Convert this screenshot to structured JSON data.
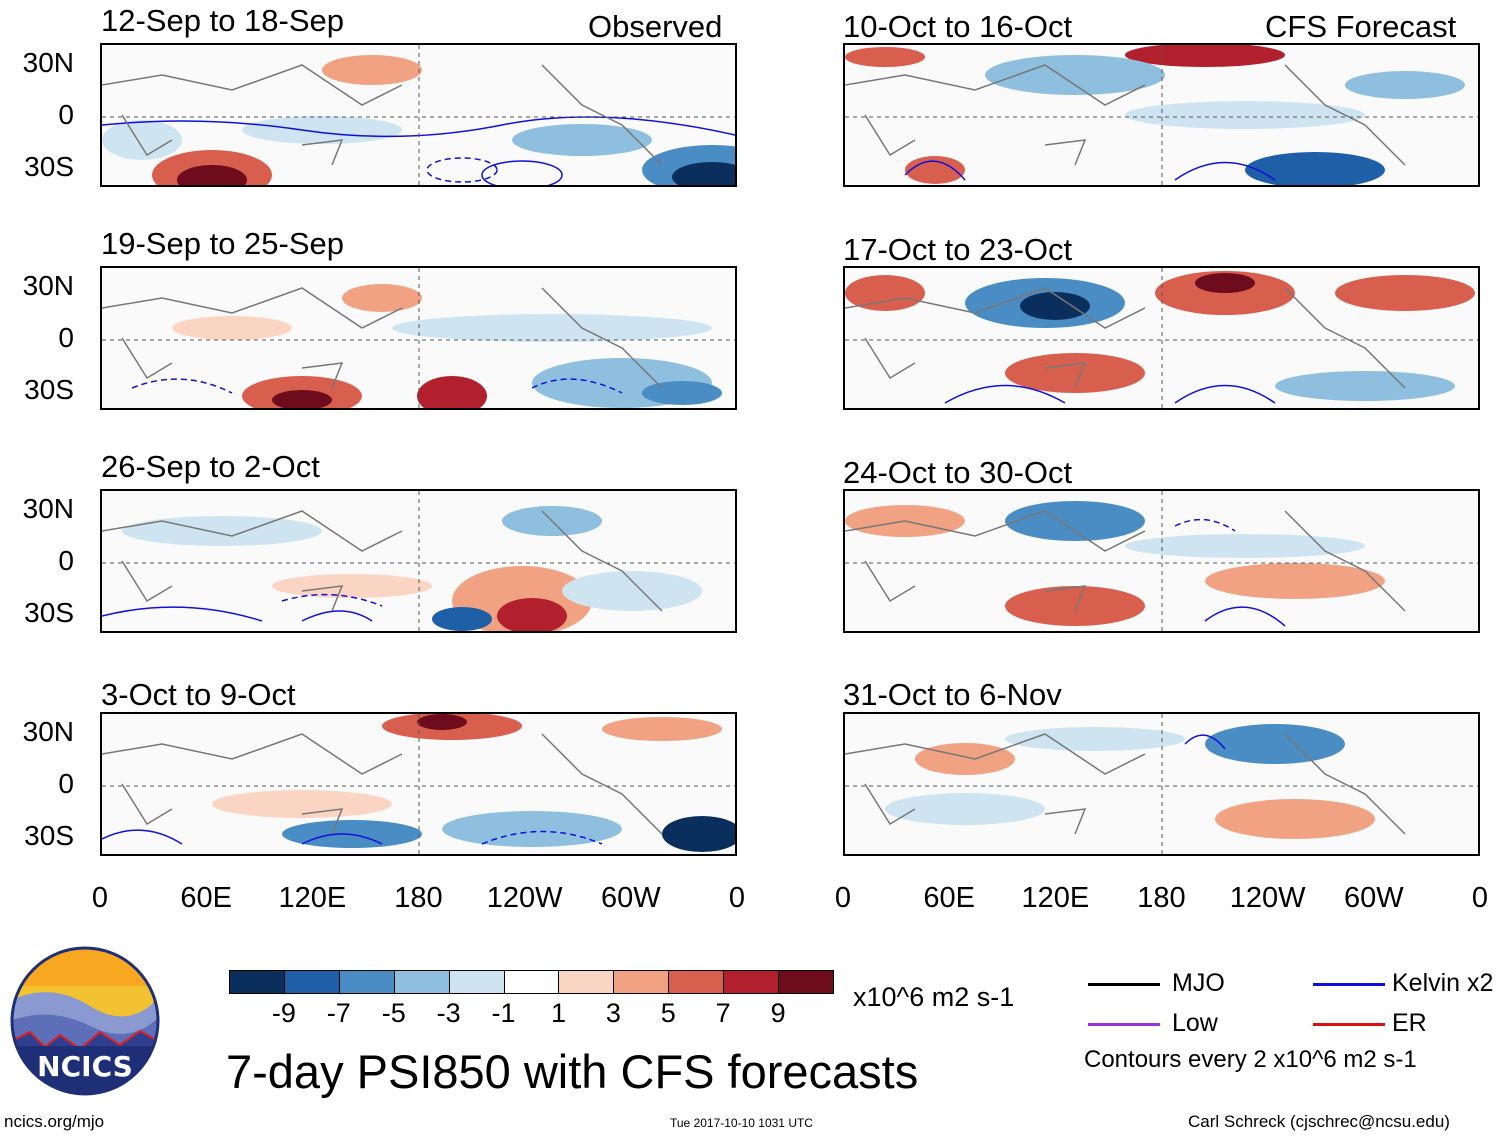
{
  "chart_data": {
    "type": "heatmap",
    "title": "7-day PSI850 with CFS forecasts",
    "columns": [
      "Observed",
      "CFS Forecast"
    ],
    "variable": "PSI850 anomaly",
    "units": "x10^6 m2 s-1",
    "lat_ticks": [
      "30N",
      "0",
      "30S"
    ],
    "lon_ticks": [
      "0",
      "60E",
      "120E",
      "180",
      "120W",
      "60W",
      "0"
    ],
    "ylim": [
      -40,
      40
    ],
    "xlim": [
      0,
      360
    ],
    "panels": [
      {
        "column": "Observed",
        "period": "12-Sep to 18-Sep"
      },
      {
        "column": "Observed",
        "period": "19-Sep to 25-Sep"
      },
      {
        "column": "Observed",
        "period": "26-Sep to 2-Oct"
      },
      {
        "column": "Observed",
        "period": "3-Oct to 9-Oct"
      },
      {
        "column": "CFS Forecast",
        "period": "10-Oct to 16-Oct"
      },
      {
        "column": "CFS Forecast",
        "period": "17-Oct to 23-Oct"
      },
      {
        "column": "CFS Forecast",
        "period": "24-Oct to 30-Oct"
      },
      {
        "column": "CFS Forecast",
        "period": "31-Oct to 6-Nov"
      }
    ],
    "colorbar": {
      "labels": [
        "-9",
        "-7",
        "-5",
        "-3",
        "-1",
        "1",
        "3",
        "5",
        "7",
        "9"
      ],
      "colors": [
        "#0a2f5c",
        "#1f5fa8",
        "#4a8cc4",
        "#8ebfde",
        "#cfe4f1",
        "#ffffff",
        "#fbd5c3",
        "#f0a283",
        "#d85f4e",
        "#b21f2d",
        "#6e0c1e"
      ]
    },
    "legend": {
      "entries": [
        {
          "label": "MJO",
          "color": "#000000"
        },
        {
          "label": "Low",
          "color": "#9b30d9"
        },
        {
          "label": "Kelvin x2",
          "color": "#1010dd"
        },
        {
          "label": "ER",
          "color": "#dd1111"
        }
      ],
      "contour_note": "Contours every 2 x10^6 m2 s-1"
    }
  },
  "logo_text": "NCICS",
  "footer": {
    "url": "ncics.org/mjo",
    "timestamp": "Tue 2017-10-10 1031 UTC",
    "author": "Carl Schreck (cjschrec@ncsu.edu)"
  }
}
